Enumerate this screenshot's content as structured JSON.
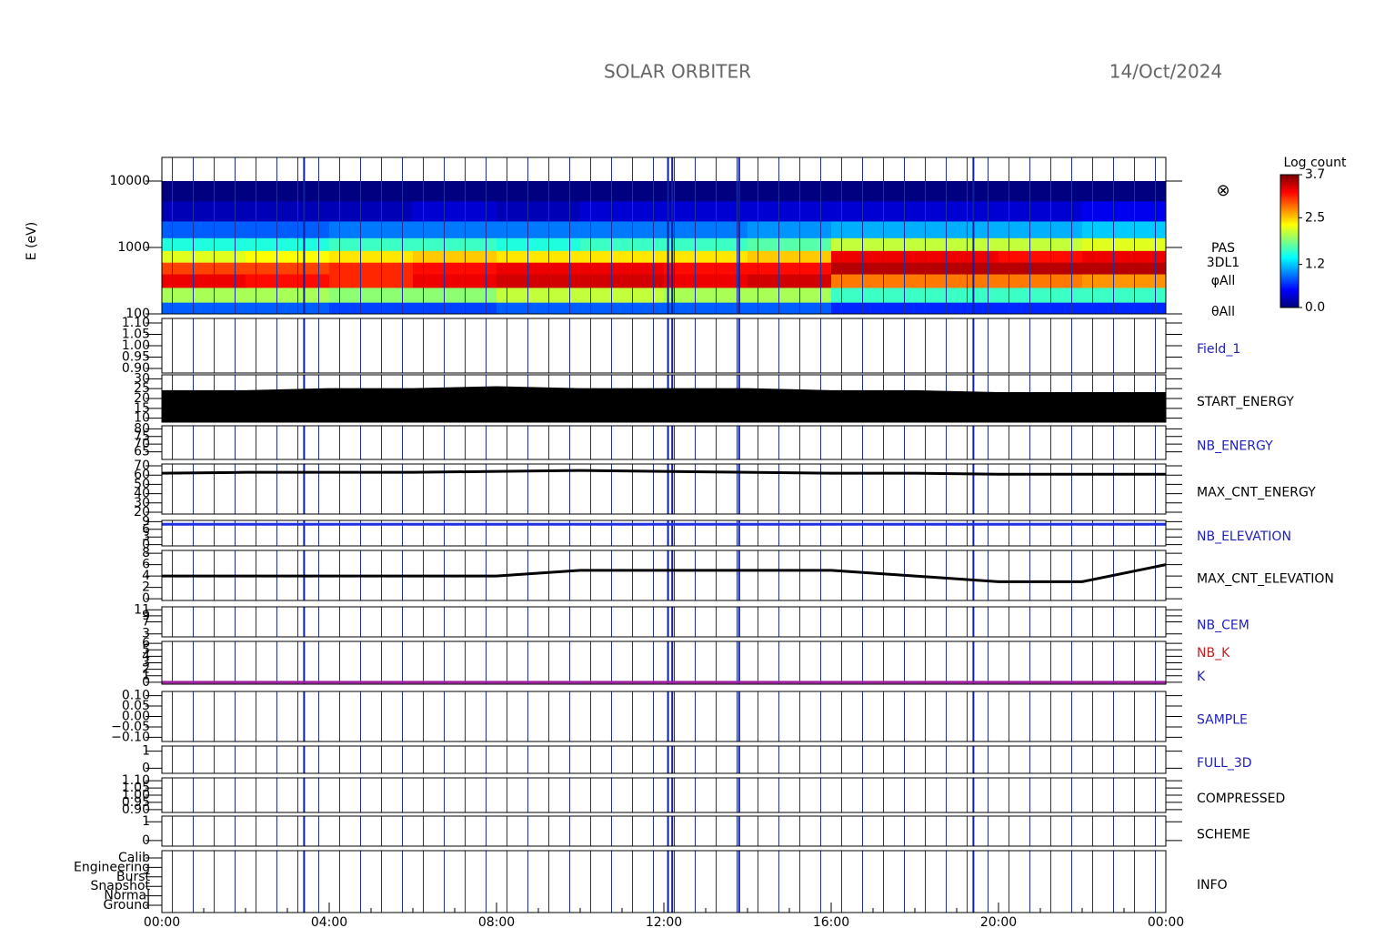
{
  "header": {
    "title": "SOLAR ORBITER",
    "date": "14/Oct/2024"
  },
  "time_axis": {
    "xlim": [
      0,
      24
    ],
    "xticks": [
      {
        "value": 0,
        "label": "00:00"
      },
      {
        "value": 4,
        "label": "04:00"
      },
      {
        "value": 8,
        "label": "08:00"
      },
      {
        "value": 12,
        "label": "12:00"
      },
      {
        "value": 16,
        "label": "16:00"
      },
      {
        "value": 20,
        "label": "20:00"
      },
      {
        "value": 24,
        "label": "00:00"
      }
    ]
  },
  "chart_data": [
    {
      "type": "heatmap",
      "ylabel": "E (eV)",
      "log_y": true,
      "ylim": [
        100,
        22700
      ],
      "yticks": [
        100,
        1000,
        10000
      ],
      "labels": [
        "PAS",
        "3DL1",
        "φAll",
        "θAll"
      ],
      "symbol": "⊗",
      "x": [
        0,
        2,
        4,
        6,
        8,
        10,
        12,
        14,
        16,
        18,
        20,
        22,
        24
      ],
      "y": [
        100,
        150,
        250,
        400,
        600,
        900,
        1400,
        2500,
        5000,
        10000
      ],
      "values": [
        [
          0.8,
          2.0,
          3.3,
          3.0,
          2.2,
          1.5,
          0.8,
          0.2,
          0.0
        ],
        [
          0.8,
          2.0,
          3.2,
          3.0,
          2.3,
          1.5,
          0.8,
          0.2,
          0.0
        ],
        [
          0.7,
          1.9,
          3.1,
          3.1,
          2.4,
          1.6,
          0.9,
          0.2,
          0.0
        ],
        [
          0.7,
          1.9,
          3.3,
          3.2,
          2.5,
          1.6,
          0.9,
          0.3,
          0.0
        ],
        [
          0.8,
          2.1,
          3.4,
          3.3,
          2.4,
          1.5,
          0.9,
          0.2,
          0.0
        ],
        [
          0.8,
          2.1,
          3.4,
          3.3,
          2.4,
          1.6,
          0.9,
          0.3,
          0.0
        ],
        [
          0.8,
          2.0,
          3.3,
          3.2,
          2.4,
          1.6,
          0.9,
          0.3,
          0.0
        ],
        [
          0.8,
          2.0,
          3.4,
          3.2,
          2.5,
          1.7,
          1.0,
          0.3,
          0.0
        ],
        [
          0.6,
          1.6,
          2.8,
          3.5,
          3.3,
          2.1,
          1.1,
          0.3,
          0.0
        ],
        [
          0.6,
          1.6,
          2.8,
          3.5,
          3.3,
          2.1,
          1.1,
          0.3,
          0.0
        ],
        [
          0.6,
          1.6,
          2.8,
          3.5,
          3.2,
          2.1,
          1.1,
          0.3,
          0.0
        ],
        [
          0.6,
          1.6,
          2.7,
          3.5,
          3.3,
          2.2,
          1.2,
          0.4,
          0.0
        ]
      ]
    },
    {
      "type": "line",
      "name": "Field_1",
      "name_color": "#2020c0",
      "ylim": [
        0.88,
        1.12
      ],
      "yticks": [
        {
          "value": 0.9,
          "label": "0.90"
        },
        {
          "value": 0.95,
          "label": "0.95"
        },
        {
          "value": 1.0,
          "label": "1.00"
        },
        {
          "value": 1.05,
          "label": "1.05"
        },
        {
          "value": 1.1,
          "label": "1.10"
        }
      ]
    },
    {
      "type": "area",
      "name": "START_ENERGY",
      "name_color": "#000000",
      "color": "#000000",
      "ylim": [
        8,
        32
      ],
      "yticks": [
        10,
        15,
        20,
        25,
        30
      ],
      "x": [
        0,
        2,
        4,
        6,
        8,
        10,
        12,
        14,
        16,
        18,
        20,
        22,
        24
      ],
      "values": [
        24,
        24,
        25,
        25,
        26,
        25,
        25,
        25,
        24,
        24,
        23,
        23,
        23
      ]
    },
    {
      "type": "line",
      "name": "NB_ENERGY",
      "name_color": "#2020c0",
      "ylim": [
        60,
        82
      ],
      "yticks": [
        65,
        70,
        75,
        80
      ]
    },
    {
      "type": "line",
      "name": "MAX_CNT_ENERGY",
      "name_color": "#000000",
      "color": "#000000",
      "ylim": [
        18,
        72
      ],
      "yticks": [
        20,
        30,
        40,
        50,
        60,
        70
      ],
      "x": [
        0,
        2,
        4,
        6,
        8,
        10,
        12,
        14,
        16,
        18,
        20,
        22,
        24
      ],
      "values": [
        62,
        63,
        63,
        63,
        64,
        65,
        64,
        63,
        62,
        62,
        61,
        61,
        61
      ]
    },
    {
      "type": "line",
      "name": "NB_ELEVATION",
      "name_color": "#2020c0",
      "color": "#2030e0",
      "ylim": [
        -0.5,
        9.5
      ],
      "yticks": [
        0,
        3,
        6,
        9
      ],
      "x": [
        0,
        2,
        4,
        6,
        8,
        10,
        12,
        14,
        16,
        18,
        20,
        22,
        24
      ],
      "values": [
        8,
        8,
        8,
        8,
        8,
        8,
        8,
        8,
        8,
        8,
        8,
        8,
        8
      ]
    },
    {
      "type": "line",
      "name": "MAX_CNT_ELEVATION",
      "name_color": "#000000",
      "color": "#000000",
      "ylim": [
        -0.3,
        8.5
      ],
      "yticks": [
        0,
        2,
        4,
        6,
        8
      ],
      "x": [
        0,
        2,
        4,
        6,
        8,
        10,
        12,
        14,
        16,
        18,
        20,
        22,
        24
      ],
      "values": [
        4,
        4,
        4,
        4,
        4,
        5,
        5,
        5,
        5,
        4,
        3,
        3,
        6
      ]
    },
    {
      "type": "line",
      "name": "NB_CEM",
      "name_color": "#2020c0",
      "ylim": [
        2,
        12
      ],
      "yticks": [
        3,
        7,
        9,
        11
      ]
    },
    {
      "type": "line",
      "names": [
        "NB_K",
        "K"
      ],
      "name_colors": [
        "#c02020",
        "#2020c0"
      ],
      "color": "#a020a0",
      "ylim": [
        -0.3,
        6.3
      ],
      "yticks": [
        0,
        1,
        2,
        3,
        4,
        5,
        6
      ],
      "x": [
        0,
        24
      ],
      "values": [
        0,
        0
      ]
    },
    {
      "type": "line",
      "name": "SAMPLE",
      "name_color": "#2020c0",
      "ylim": [
        -0.12,
        0.12
      ],
      "yticks": [
        {
          "value": -0.1,
          "label": "−0.10"
        },
        {
          "value": -0.05,
          "label": "−0.05"
        },
        {
          "value": 0,
          "label": "0.00"
        },
        {
          "value": 0.05,
          "label": "0.05"
        },
        {
          "value": 0.1,
          "label": "0.10"
        }
      ]
    },
    {
      "type": "line",
      "name": "FULL_3D",
      "name_color": "#2020c0",
      "ylim": [
        -0.3,
        1.3
      ],
      "yticks": [
        0,
        1
      ]
    },
    {
      "type": "line",
      "name": "COMPRESSED",
      "name_color": "#000000",
      "ylim": [
        0.88,
        1.12
      ],
      "yticks": [
        {
          "value": 0.9,
          "label": "0.90"
        },
        {
          "value": 0.95,
          "label": "0.95"
        },
        {
          "value": 1.0,
          "label": "1.00"
        },
        {
          "value": 1.05,
          "label": "1.05"
        },
        {
          "value": 1.1,
          "label": "1.10"
        }
      ]
    },
    {
      "type": "line",
      "name": "SCHEME",
      "name_color": "#000000",
      "ylim": [
        -0.3,
        1.3
      ],
      "yticks": [
        0,
        1
      ]
    },
    {
      "type": "categories",
      "name": "INFO",
      "name_color": "#000000",
      "categories": [
        "Ground",
        "Normal",
        "Snapshot",
        "Burst",
        "Engineering",
        "Calib"
      ]
    },
    {
      "type": "colorbar",
      "title": "Log count",
      "ylim": [
        0,
        3.7
      ],
      "yticks": [
        {
          "value": 0,
          "label": "0.0"
        },
        {
          "value": 1.2,
          "label": "1.2"
        },
        {
          "value": 2.5,
          "label": "2.5"
        },
        {
          "value": 3.7,
          "label": "3.7"
        }
      ]
    }
  ]
}
